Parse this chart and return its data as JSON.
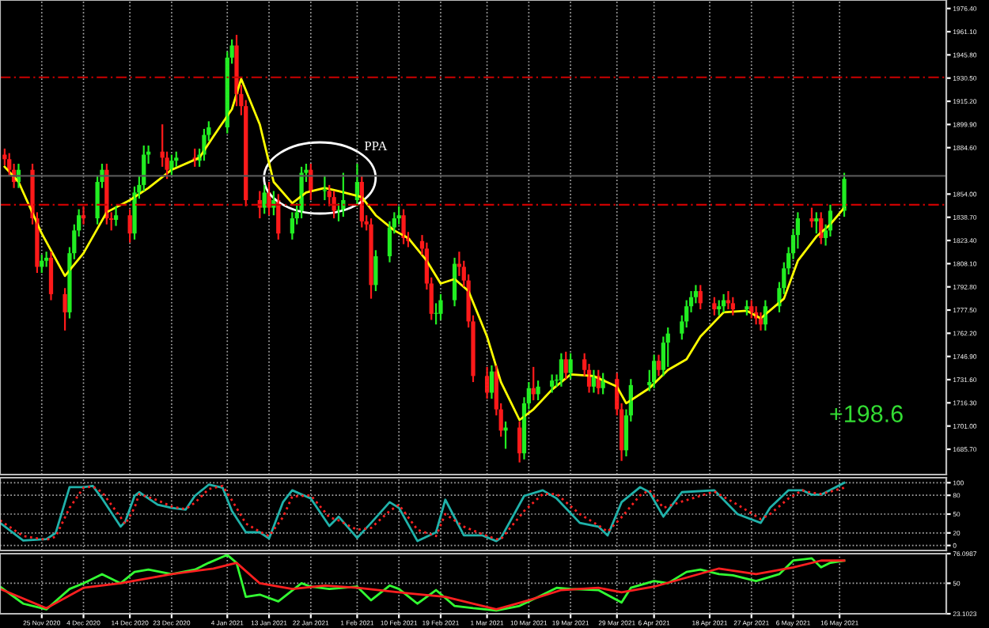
{
  "chart_data": [
    {
      "type": "candlestick",
      "tick_labels": "y",
      "grid": "x",
      "colors": [
        "#ff1a1a",
        "#ff1a1a",
        "#ff1a1a",
        "#22ee22",
        "#ff1a1a",
        "#ff1a1a",
        "#22ee22",
        "#22ee22",
        "#ff1a1a",
        "#ff1a1a",
        "#22ee22",
        "#22ee22",
        "#22ee22",
        "#ff1a1a",
        "#22ee22",
        "#22ee22",
        "#ff1a1a",
        "#ff1a1a",
        "#22ee22",
        "#ff1a1a",
        "#22ee22",
        "#22ee22",
        "#22ee22",
        "#22ee22",
        "#ff1a1a",
        "#ff1a1a",
        "#22ee22",
        "#22ee22",
        "#ff1a1a",
        "#22ee22",
        "#22ee22",
        "#22ee22",
        "#22ee22",
        "#22ee22",
        "#ff1a1a",
        "#ff1a1a",
        "#ff1a1a",
        "#ff1a1a",
        "#22ee22",
        "#ff1a1a",
        "#22ee22",
        "#ff1a1a",
        "#22ee22",
        "#22ee22",
        "#22ee22",
        "#22ee22",
        "#ff1a1a",
        "#22ee22",
        "#ff1a1a",
        "#ff1a1a",
        "#22ee22",
        "#22ee22",
        "#22ee22",
        "#ff1a1a",
        "#ff1a1a",
        "#ff1a1a",
        "#22ee22",
        "#22ee22",
        "#22ee22",
        "#22ee22",
        "#ff1a1a",
        "#ff1a1a",
        "#ff1a1a",
        "#ff1a1a",
        "#ff1a1a",
        "#22ee22",
        "#22ee22",
        "#22ee22",
        "#ff1a1a",
        "#ff1a1a",
        "#ff1a1a",
        "#ff1a1a",
        "#ff1a1a",
        "#22ee22",
        "#ff1a1a",
        "#ff1a1a",
        "#22ee22",
        "#ff1a1a",
        "#22ee22",
        "#22ee22",
        "#ff1a1a",
        "#22ee22",
        "#22ee22",
        "#22ee22",
        "#22ee22",
        "#ff1a1a",
        "#22ee22",
        "#ff1a1a",
        "#ff1a1a",
        "#22ee22",
        "#ff1a1a",
        "#22ee22",
        "#ff1a1a",
        "#ff1a1a",
        "#22ee22",
        "#22ee22",
        "#22ee22",
        "#22ee22",
        "#ff1a1a",
        "#22ee22",
        "#22ee22",
        "#22ee22",
        "#22ee22",
        "#22ee22",
        "#22ee22",
        "#ff1a1a",
        "#ff1a1a",
        "#22ee22",
        "#22ee22",
        "#ff1a1a",
        "#ff1a1a",
        "#22ee22",
        "#ff1a1a",
        "#ff1a1a",
        "#ff1a1a",
        "#22ee22",
        "#22ee22",
        "#22ee22",
        "#22ee22",
        "#22ee22",
        "#22ee22",
        "#ff1a1a",
        "#22ee22",
        "#ff1a1a",
        "#22ee22",
        "#22ee22",
        "#22ee22"
      ],
      "xlim": [
        "2020-11-16",
        "2021-06-08"
      ],
      "xticks": [
        {
          "value": "2020-11-25",
          "label": null
        },
        {
          "value": "2020-12-04",
          "label": null
        },
        {
          "value": "2020-12-14",
          "label": null
        },
        {
          "value": "2020-12-23",
          "label": null
        },
        {
          "value": "2021-01-04",
          "label": null
        },
        {
          "value": "2021-01-13",
          "label": null
        },
        {
          "value": "2021-01-22",
          "label": null
        },
        {
          "value": "2021-02-01",
          "label": null
        },
        {
          "value": "2021-02-10",
          "label": null
        },
        {
          "value": "2021-02-19",
          "label": null
        },
        {
          "value": "2021-03-01",
          "label": null
        },
        {
          "value": "2021-03-10",
          "label": null
        },
        {
          "value": "2021-03-19",
          "label": null
        },
        {
          "value": "2021-03-29",
          "label": null
        },
        {
          "value": "2021-04-06",
          "label": null
        },
        {
          "value": "2021-04-18",
          "label": null
        },
        {
          "value": "2021-04-27",
          "label": null
        },
        {
          "value": "2021-05-06",
          "label": null
        },
        {
          "value": "2021-05-16",
          "label": null
        }
      ],
      "ylim": [
        1669,
        1982
      ],
      "yticks": [
        {
          "value": 1685.7,
          "label": "1685.70"
        },
        {
          "value": 1701,
          "label": "1701.00"
        },
        {
          "value": 1716.3,
          "label": "1716.30"
        },
        {
          "value": 1731.6,
          "label": "1731.60"
        },
        {
          "value": 1746.9,
          "label": "1746.90"
        },
        {
          "value": 1762.2,
          "label": "1762.20"
        },
        {
          "value": 1777.5,
          "label": "1777.50"
        },
        {
          "value": 1792.8,
          "label": "1792.80"
        },
        {
          "value": 1808.1,
          "label": "1808.10"
        },
        {
          "value": 1823.4,
          "label": "1823.40"
        },
        {
          "value": 1838.7,
          "label": "1838.70"
        },
        {
          "value": 1854,
          "label": "1854.00"
        },
        {
          "value": 1884.6,
          "label": "1884.60"
        },
        {
          "value": 1899.9,
          "label": "1899.90"
        },
        {
          "value": 1915.2,
          "label": "1915.20"
        },
        {
          "value": 1930.5,
          "label": "1930.50"
        },
        {
          "value": 1945.8,
          "label": "1945.80"
        },
        {
          "value": 1961.1,
          "label": "1961.10"
        },
        {
          "value": 1976.4,
          "label": "1976.40"
        }
      ],
      "ref_lines": [
        {
          "axis": "y",
          "value": 1931,
          "color": "#cc0000",
          "line_style": "dashed"
        },
        {
          "axis": "y",
          "value": 1847,
          "color": "#cc0000",
          "line_style": "dashed"
        },
        {
          "axis": "y",
          "value": 1866,
          "color": "#555555",
          "line_style": "solid"
        }
      ],
      "annotations": [
        "PPA",
        "+198.6"
      ],
      "x": [
        "2020-11-17",
        "2020-11-18",
        "2020-11-19",
        "2020-11-20",
        "2020-11-23",
        "2020-11-24",
        "2020-11-25",
        "2020-11-26",
        "2020-11-27",
        "2020-11-30",
        "2020-12-01",
        "2020-12-02",
        "2020-12-03",
        "2020-12-04",
        "2020-12-07",
        "2020-12-08",
        "2020-12-09",
        "2020-12-10",
        "2020-12-11",
        "2020-12-14",
        "2020-12-15",
        "2020-12-16",
        "2020-12-17",
        "2020-12-18",
        "2020-12-21",
        "2020-12-22",
        "2020-12-23",
        "2020-12-24",
        "2020-12-28",
        "2020-12-29",
        "2020-12-30",
        "2020-12-31",
        "2021-01-04",
        "2021-01-05",
        "2021-01-06",
        "2021-01-07",
        "2021-01-08",
        "2021-01-11",
        "2021-01-12",
        "2021-01-13",
        "2021-01-14",
        "2021-01-15",
        "2021-01-18",
        "2021-01-19",
        "2021-01-20",
        "2021-01-21",
        "2021-01-22",
        "2021-01-25",
        "2021-01-26",
        "2021-01-27",
        "2021-01-28",
        "2021-01-29",
        "2021-02-01",
        "2021-02-02",
        "2021-02-03",
        "2021-02-04",
        "2021-02-05",
        "2021-02-08",
        "2021-02-09",
        "2021-02-10",
        "2021-02-11",
        "2021-02-12",
        "2021-02-15",
        "2021-02-16",
        "2021-02-17",
        "2021-02-18",
        "2021-02-19",
        "2021-02-22",
        "2021-02-23",
        "2021-02-24",
        "2021-02-25",
        "2021-02-26",
        "2021-03-01",
        "2021-03-02",
        "2021-03-03",
        "2021-03-04",
        "2021-03-05",
        "2021-03-08",
        "2021-03-09",
        "2021-03-10",
        "2021-03-11",
        "2021-03-12",
        "2021-03-15",
        "2021-03-16",
        "2021-03-17",
        "2021-03-18",
        "2021-03-19",
        "2021-03-22",
        "2021-03-23",
        "2021-03-24",
        "2021-03-25",
        "2021-03-26",
        "2021-03-29",
        "2021-03-30",
        "2021-03-31",
        "2021-04-01",
        "2021-04-05",
        "2021-04-06",
        "2021-04-07",
        "2021-04-08",
        "2021-04-09",
        "2021-04-12",
        "2021-04-13",
        "2021-04-14",
        "2021-04-15",
        "2021-04-16",
        "2021-04-19",
        "2021-04-20",
        "2021-04-21",
        "2021-04-22",
        "2021-04-23",
        "2021-04-26",
        "2021-04-27",
        "2021-04-28",
        "2021-04-29",
        "2021-04-30",
        "2021-05-03",
        "2021-05-04",
        "2021-05-05",
        "2021-05-06",
        "2021-05-07",
        "2021-05-10",
        "2021-05-11",
        "2021-05-12",
        "2021-05-13",
        "2021-05-14",
        "2021-05-17"
      ],
      "ohlc": [
        [
          1880,
          1884,
          1873,
          1877
        ],
        [
          1877,
          1881,
          1866,
          1870
        ],
        [
          1870,
          1874,
          1858,
          1862
        ],
        [
          1862,
          1874,
          1858,
          1870
        ],
        [
          1870,
          1874,
          1834,
          1838
        ],
        [
          1838,
          1842,
          1802,
          1806
        ],
        [
          1806,
          1814,
          1802,
          1810
        ],
        [
          1810,
          1816,
          1806,
          1812
        ],
        [
          1812,
          1816,
          1784,
          1788
        ],
        [
          1788,
          1792,
          1764,
          1776
        ],
        [
          1776,
          1819,
          1772,
          1815
        ],
        [
          1815,
          1834,
          1811,
          1830
        ],
        [
          1830,
          1844,
          1826,
          1840
        ],
        [
          1840,
          1846,
          1834,
          1838
        ],
        [
          1838,
          1866,
          1834,
          1862
        ],
        [
          1862,
          1874,
          1858,
          1870
        ],
        [
          1870,
          1874,
          1834,
          1838
        ],
        [
          1838,
          1842,
          1830,
          1837
        ],
        [
          1837,
          1846,
          1833,
          1840
        ],
        [
          1840,
          1844,
          1822,
          1828
        ],
        [
          1828,
          1859,
          1824,
          1855
        ],
        [
          1855,
          1866,
          1851,
          1860
        ],
        [
          1860,
          1886,
          1856,
          1880
        ],
        [
          1880,
          1886,
          1874,
          1882
        ],
        [
          1882,
          1900,
          1872,
          1878
        ],
        [
          1878,
          1882,
          1864,
          1870
        ],
        [
          1870,
          1880,
          1866,
          1876
        ],
        [
          1876,
          1882,
          1872,
          1878
        ],
        [
          1878,
          1884,
          1872,
          1876
        ],
        [
          1876,
          1884,
          1872,
          1880
        ],
        [
          1880,
          1897,
          1876,
          1893
        ],
        [
          1893,
          1902,
          1889,
          1898
        ],
        [
          1898,
          1948,
          1894,
          1944
        ],
        [
          1944,
          1956,
          1940,
          1952
        ],
        [
          1952,
          1959,
          1912,
          1920
        ],
        [
          1920,
          1926,
          1906,
          1912
        ],
        [
          1912,
          1916,
          1846,
          1850
        ],
        [
          1850,
          1856,
          1838,
          1845
        ],
        [
          1845,
          1860,
          1841,
          1855
        ],
        [
          1855,
          1862,
          1840,
          1845
        ],
        [
          1845,
          1856,
          1840,
          1850
        ],
        [
          1850,
          1854,
          1824,
          1828
        ],
        [
          1828,
          1842,
          1824,
          1838
        ],
        [
          1838,
          1848,
          1834,
          1842
        ],
        [
          1842,
          1872,
          1838,
          1868
        ],
        [
          1868,
          1874,
          1862,
          1870
        ],
        [
          1870,
          1874,
          1850,
          1856
        ],
        [
          1856,
          1866,
          1850,
          1856
        ],
        [
          1856,
          1860,
          1846,
          1852
        ],
        [
          1852,
          1856,
          1838,
          1843
        ],
        [
          1843,
          1848,
          1836,
          1843
        ],
        [
          1843,
          1868,
          1839,
          1850
        ],
        [
          1850,
          1874,
          1846,
          1862
        ],
        [
          1862,
          1866,
          1832,
          1836
        ],
        [
          1836,
          1840,
          1830,
          1834
        ],
        [
          1834,
          1838,
          1785,
          1794
        ],
        [
          1794,
          1817,
          1790,
          1813
        ],
        [
          1813,
          1836,
          1809,
          1832
        ],
        [
          1832,
          1842,
          1828,
          1838
        ],
        [
          1838,
          1846,
          1834,
          1840
        ],
        [
          1840,
          1844,
          1821,
          1825
        ],
        [
          1825,
          1829,
          1819,
          1823
        ],
        [
          1823,
          1827,
          1814,
          1818
        ],
        [
          1818,
          1822,
          1791,
          1795
        ],
        [
          1795,
          1799,
          1771,
          1775
        ],
        [
          1775,
          1782,
          1768,
          1775
        ],
        [
          1775,
          1788,
          1771,
          1784
        ],
        [
          1784,
          1812,
          1780,
          1808
        ],
        [
          1808,
          1816,
          1800,
          1806
        ],
        [
          1806,
          1810,
          1793,
          1797
        ],
        [
          1797,
          1801,
          1766,
          1770
        ],
        [
          1770,
          1774,
          1730,
          1734
        ],
        [
          1734,
          1740,
          1719,
          1723
        ],
        [
          1723,
          1741,
          1719,
          1737
        ],
        [
          1737,
          1741,
          1708,
          1712
        ],
        [
          1712,
          1716,
          1694,
          1698
        ],
        [
          1698,
          1704,
          1686,
          1700
        ],
        [
          1700,
          1704,
          1677,
          1683
        ],
        [
          1683,
          1720,
          1679,
          1716
        ],
        [
          1716,
          1730,
          1712,
          1726
        ],
        [
          1726,
          1740,
          1718,
          1722
        ],
        [
          1722,
          1731,
          1718,
          1727
        ],
        [
          1727,
          1735,
          1723,
          1731
        ],
        [
          1731,
          1735,
          1727,
          1731
        ],
        [
          1731,
          1749,
          1727,
          1745
        ],
        [
          1745,
          1750,
          1732,
          1736
        ],
        [
          1736,
          1749,
          1732,
          1745
        ],
        [
          1745,
          1749,
          1734,
          1738
        ],
        [
          1738,
          1742,
          1723,
          1727
        ],
        [
          1727,
          1738,
          1723,
          1734
        ],
        [
          1734,
          1738,
          1722,
          1726
        ],
        [
          1726,
          1736,
          1722,
          1732
        ],
        [
          1732,
          1736,
          1708,
          1712
        ],
        [
          1712,
          1716,
          1678,
          1685
        ],
        [
          1685,
          1712,
          1681,
          1708
        ],
        [
          1708,
          1732,
          1704,
          1728
        ],
        [
          1728,
          1738,
          1724,
          1730
        ],
        [
          1730,
          1748,
          1726,
          1744
        ],
        [
          1744,
          1748,
          1734,
          1738
        ],
        [
          1738,
          1760,
          1734,
          1756
        ],
        [
          1756,
          1766,
          1740,
          1762
        ],
        [
          1762,
          1774,
          1758,
          1770
        ],
        [
          1770,
          1784,
          1766,
          1780
        ],
        [
          1780,
          1790,
          1776,
          1786
        ],
        [
          1786,
          1794,
          1782,
          1790
        ],
        [
          1790,
          1794,
          1778,
          1782
        ],
        [
          1782,
          1786,
          1774,
          1778
        ],
        [
          1778,
          1784,
          1774,
          1780
        ],
        [
          1780,
          1788,
          1776,
          1784
        ],
        [
          1784,
          1790,
          1778,
          1782
        ],
        [
          1782,
          1786,
          1774,
          1778
        ],
        [
          1778,
          1784,
          1774,
          1780
        ],
        [
          1780,
          1784,
          1772,
          1776
        ],
        [
          1776,
          1780,
          1768,
          1772
        ],
        [
          1772,
          1776,
          1764,
          1768
        ],
        [
          1768,
          1784,
          1764,
          1780
        ],
        [
          1780,
          1796,
          1776,
          1792
        ],
        [
          1792,
          1809,
          1788,
          1805
        ],
        [
          1805,
          1819,
          1801,
          1815
        ],
        [
          1815,
          1831,
          1811,
          1827
        ],
        [
          1827,
          1842,
          1818,
          1838
        ],
        [
          1838,
          1845,
          1832,
          1836
        ],
        [
          1836,
          1842,
          1828,
          1838
        ],
        [
          1838,
          1842,
          1821,
          1825
        ],
        [
          1825,
          1834,
          1820,
          1830
        ],
        [
          1830,
          1847,
          1826,
          1843
        ],
        [
          1843,
          1868,
          1839,
          1864
        ]
      ],
      "series": [
        {
          "type": "line",
          "color": "#ffff00",
          "x": [
            "2020-11-17",
            "2020-11-20",
            "2020-11-25",
            "2020-11-30",
            "2020-12-04",
            "2020-12-09",
            "2020-12-14",
            "2020-12-18",
            "2020-12-23",
            "2020-12-29",
            "2021-01-01",
            "2021-01-05",
            "2021-01-07",
            "2021-01-11",
            "2021-01-14",
            "2021-01-18",
            "2021-01-21",
            "2021-01-25",
            "2021-01-28",
            "2021-02-02",
            "2021-02-05",
            "2021-02-09",
            "2021-02-12",
            "2021-02-16",
            "2021-02-19",
            "2021-02-22",
            "2021-02-25",
            "2021-03-01",
            "2021-03-04",
            "2021-03-08",
            "2021-03-11",
            "2021-03-15",
            "2021-03-19",
            "2021-03-24",
            "2021-03-29",
            "2021-03-31",
            "2021-04-05",
            "2021-04-09",
            "2021-04-13",
            "2021-04-16",
            "2021-04-21",
            "2021-04-26",
            "2021-04-29",
            "2021-05-04",
            "2021-05-07",
            "2021-05-11",
            "2021-05-14",
            "2021-05-17"
          ],
          "values": [
            1872,
            1862,
            1828,
            1800,
            1815,
            1842,
            1850,
            1858,
            1870,
            1878,
            1892,
            1910,
            1930,
            1900,
            1862,
            1848,
            1855,
            1858,
            1856,
            1852,
            1840,
            1830,
            1825,
            1810,
            1795,
            1798,
            1790,
            1760,
            1730,
            1705,
            1712,
            1725,
            1735,
            1734,
            1727,
            1716,
            1726,
            1738,
            1745,
            1760,
            1776,
            1777,
            1772,
            1785,
            1810,
            1826,
            1834,
            1845
          ]
        }
      ]
    },
    {
      "type": "line",
      "tick_labels": "y",
      "grid": true,
      "xlim": [
        "2020-11-16",
        "2021-06-08"
      ],
      "xticks": [
        {
          "value": "2020-11-25",
          "label": null
        },
        {
          "value": "2020-12-04",
          "label": null
        },
        {
          "value": "2020-12-14",
          "label": null
        },
        {
          "value": "2020-12-23",
          "label": null
        },
        {
          "value": "2021-01-04",
          "label": null
        },
        {
          "value": "2021-01-13",
          "label": null
        },
        {
          "value": "2021-01-22",
          "label": null
        },
        {
          "value": "2021-02-01",
          "label": null
        },
        {
          "value": "2021-02-10",
          "label": null
        },
        {
          "value": "2021-02-19",
          "label": null
        },
        {
          "value": "2021-03-01",
          "label": null
        },
        {
          "value": "2021-03-10",
          "label": null
        },
        {
          "value": "2021-03-19",
          "label": null
        },
        {
          "value": "2021-03-29",
          "label": null
        },
        {
          "value": "2021-04-06",
          "label": null
        },
        {
          "value": "2021-04-18",
          "label": null
        },
        {
          "value": "2021-04-27",
          "label": null
        },
        {
          "value": "2021-05-06",
          "label": null
        },
        {
          "value": "2021-05-16",
          "label": null
        }
      ],
      "ylim": [
        -8,
        108
      ],
      "yticks": [
        0,
        20,
        50,
        80,
        100
      ],
      "x": [
        "2020-11-16",
        "2020-11-21",
        "2020-11-26",
        "2020-11-28",
        "2020-12-01",
        "2020-12-04",
        "2020-12-06",
        "2020-12-08",
        "2020-12-12",
        "2020-12-13",
        "2020-12-15",
        "2020-12-16",
        "2020-12-20",
        "2020-12-23",
        "2020-12-26",
        "2020-12-28",
        "2020-12-31",
        "2021-01-03",
        "2021-01-05",
        "2021-01-08",
        "2021-01-11",
        "2021-01-13",
        "2021-01-16",
        "2021-01-18",
        "2021-01-22",
        "2021-01-26",
        "2021-01-28",
        "2021-02-01",
        "2021-02-04",
        "2021-02-08",
        "2021-02-10",
        "2021-02-14",
        "2021-02-18",
        "2021-02-20",
        "2021-02-24",
        "2021-02-28",
        "2021-03-03",
        "2021-03-04",
        "2021-03-09",
        "2021-03-13",
        "2021-03-16",
        "2021-03-21",
        "2021-03-25",
        "2021-03-27",
        "2021-03-30",
        "2021-04-03",
        "2021-04-05",
        "2021-04-08",
        "2021-04-12",
        "2021-04-19",
        "2021-04-24",
        "2021-04-29",
        "2021-05-01",
        "2021-05-05",
        "2021-05-08",
        "2021-05-10",
        "2021-05-12",
        "2021-05-17"
      ],
      "series": [
        {
          "color": "#20b2aa",
          "line_style": "solid",
          "values": [
            36,
            8,
            10,
            20,
            93,
            93,
            95,
            75,
            30,
            38,
            79,
            85,
            65,
            60,
            57,
            79,
            97,
            92,
            55,
            21,
            21,
            11,
            69,
            88,
            75,
            31,
            46,
            12,
            36,
            69,
            60,
            7,
            21,
            73,
            16,
            16,
            7,
            12,
            79,
            88,
            75,
            36,
            30,
            16,
            69,
            93,
            85,
            46,
            85,
            88,
            50,
            36,
            60,
            88,
            88,
            81,
            81,
            100
          ]
        },
        {
          "color": "#ff2020",
          "line_style": "dotted",
          "values": [
            40,
            15,
            9,
            14,
            60,
            92,
            94,
            85,
            45,
            34,
            60,
            82,
            72,
            62,
            58,
            68,
            90,
            95,
            72,
            35,
            22,
            15,
            45,
            78,
            80,
            45,
            40,
            25,
            28,
            55,
            65,
            25,
            15,
            50,
            30,
            18,
            10,
            10,
            55,
            82,
            82,
            50,
            32,
            22,
            45,
            80,
            88,
            60,
            70,
            86,
            65,
            42,
            50,
            75,
            88,
            84,
            82,
            92
          ]
        }
      ]
    },
    {
      "type": "line",
      "grid": true,
      "xlim": [
        "2020-11-16",
        "2021-06-08"
      ],
      "xticks": [
        {
          "value": "2020-11-25",
          "label": "25 Nov 2020"
        },
        {
          "value": "2020-12-04",
          "label": "4 Dec 2020"
        },
        {
          "value": "2020-12-14",
          "label": "14 Dec 2020"
        },
        {
          "value": "2020-12-23",
          "label": "23 Dec 2020"
        },
        {
          "value": "2021-01-04",
          "label": "4 Jan 2021"
        },
        {
          "value": "2021-01-13",
          "label": "13 Jan 2021"
        },
        {
          "value": "2021-01-22",
          "label": "22 Jan 2021"
        },
        {
          "value": "2021-02-01",
          "label": "1 Feb 2021"
        },
        {
          "value": "2021-02-10",
          "label": "10 Feb 2021"
        },
        {
          "value": "2021-02-19",
          "label": "19 Feb 2021"
        },
        {
          "value": "2021-03-01",
          "label": "1 Mar 2021"
        },
        {
          "value": "2021-03-10",
          "label": "10 Mar 2021"
        },
        {
          "value": "2021-03-19",
          "label": "19 Mar 2021"
        },
        {
          "value": "2021-03-29",
          "label": "29 Mar 2021"
        },
        {
          "value": "2021-04-06",
          "label": "6 Apr 2021"
        },
        {
          "value": "2021-04-18",
          "label": "18 Apr 2021"
        },
        {
          "value": "2021-04-27",
          "label": "27 Apr 2021"
        },
        {
          "value": "2021-05-06",
          "label": "6 May 2021"
        },
        {
          "value": "2021-05-16",
          "label": "16 May 2021"
        }
      ],
      "ylim": [
        23.1023,
        76.0987
      ],
      "yticks": [
        {
          "value": 76.0987,
          "label": "76.0987"
        },
        50,
        {
          "value": 23.1023,
          "label": "23.1023"
        }
      ],
      "series": [
        {
          "color": "#33ff33",
          "x": [
            "2020-11-16",
            "2020-11-21",
            "2020-11-26",
            "2020-12-01",
            "2020-12-04",
            "2020-12-08",
            "2020-12-12",
            "2020-12-15",
            "2020-12-18",
            "2020-12-23",
            "2020-12-28",
            "2020-12-31",
            "2021-01-04",
            "2021-01-06",
            "2021-01-08",
            "2021-01-11",
            "2021-01-15",
            "2021-01-20",
            "2021-01-22",
            "2021-01-26",
            "2021-02-01",
            "2021-02-04",
            "2021-02-08",
            "2021-02-10",
            "2021-02-14",
            "2021-02-18",
            "2021-02-22",
            "2021-02-26",
            "2021-03-03",
            "2021-03-08",
            "2021-03-12",
            "2021-03-16",
            "2021-03-19",
            "2021-03-25",
            "2021-03-30",
            "2021-04-01",
            "2021-04-06",
            "2021-04-09",
            "2021-04-13",
            "2021-04-16",
            "2021-04-20",
            "2021-04-23",
            "2021-04-28",
            "2021-05-03",
            "2021-05-06",
            "2021-05-10",
            "2021-05-12",
            "2021-05-14",
            "2021-05-17"
          ],
          "values": [
            47,
            32,
            27,
            45,
            50,
            58,
            50,
            60,
            62,
            58,
            62,
            68,
            75,
            68,
            38,
            40,
            34,
            50,
            47,
            45,
            47,
            35,
            48,
            45,
            32,
            44,
            30,
            28,
            26,
            30,
            38,
            46,
            45,
            44,
            33,
            46,
            52,
            50,
            60,
            62,
            58,
            57,
            52,
            58,
            70,
            72,
            64,
            68,
            70
          ]
        },
        {
          "color": "#ff2020",
          "x": [
            "2020-11-16",
            "2020-11-26",
            "2020-12-04",
            "2020-12-12",
            "2020-12-23",
            "2021-01-01",
            "2021-01-06",
            "2021-01-11",
            "2021-01-18",
            "2021-01-25",
            "2021-02-01",
            "2021-02-10",
            "2021-02-20",
            "2021-03-03",
            "2021-03-10",
            "2021-03-17",
            "2021-03-25",
            "2021-03-30",
            "2021-04-06",
            "2021-04-13",
            "2021-04-20",
            "2021-04-28",
            "2021-05-06",
            "2021-05-12",
            "2021-05-17"
          ],
          "values": [
            45,
            28,
            46,
            50,
            58,
            63,
            68,
            50,
            45,
            48,
            46,
            42,
            38,
            27,
            35,
            44,
            46,
            42,
            47,
            55,
            63,
            58,
            64,
            70,
            70
          ]
        }
      ]
    }
  ]
}
